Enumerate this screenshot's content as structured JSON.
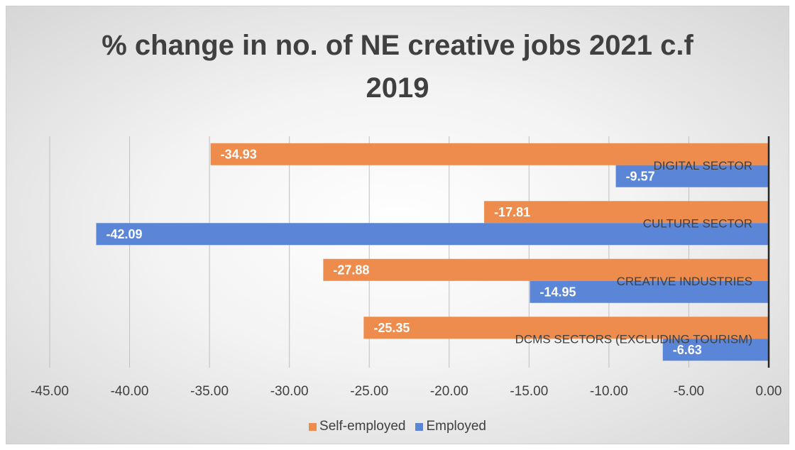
{
  "chart_data": {
    "type": "bar",
    "orientation": "horizontal",
    "title": "% change in no. of NE creative jobs 2021 c.f 2019",
    "categories": [
      "DIGITAL SECTOR",
      "CULTURE SECTOR",
      "CREATIVE INDUSTRIES",
      "DCMS SECTORS (EXCLUDING TOURISM)"
    ],
    "series": [
      {
        "name": "Self-employed",
        "color": "#ED8C4C",
        "values": [
          -34.93,
          -17.81,
          -27.88,
          -25.35
        ],
        "labels": [
          "-34.93",
          "-17.81",
          "-27.88",
          "-25.35"
        ]
      },
      {
        "name": "Employed",
        "color": "#5B85D6",
        "values": [
          -9.57,
          -42.09,
          -14.95,
          -6.63
        ],
        "labels": [
          "-9.57",
          "-42.09",
          "-14.95",
          "-6.63"
        ]
      }
    ],
    "xlim": [
      -45,
      0
    ],
    "xticks": [
      -45,
      -40,
      -35,
      -30,
      -25,
      -20,
      -15,
      -10,
      -5,
      0
    ],
    "xtick_labels": [
      "-45.00",
      "-40.00",
      "-35.00",
      "-30.00",
      "-25.00",
      "-20.00",
      "-15.00",
      "-10.00",
      "-5.00",
      "0.00"
    ],
    "grid": "vertical",
    "legend_position": "bottom",
    "xlabel": "",
    "ylabel": ""
  }
}
